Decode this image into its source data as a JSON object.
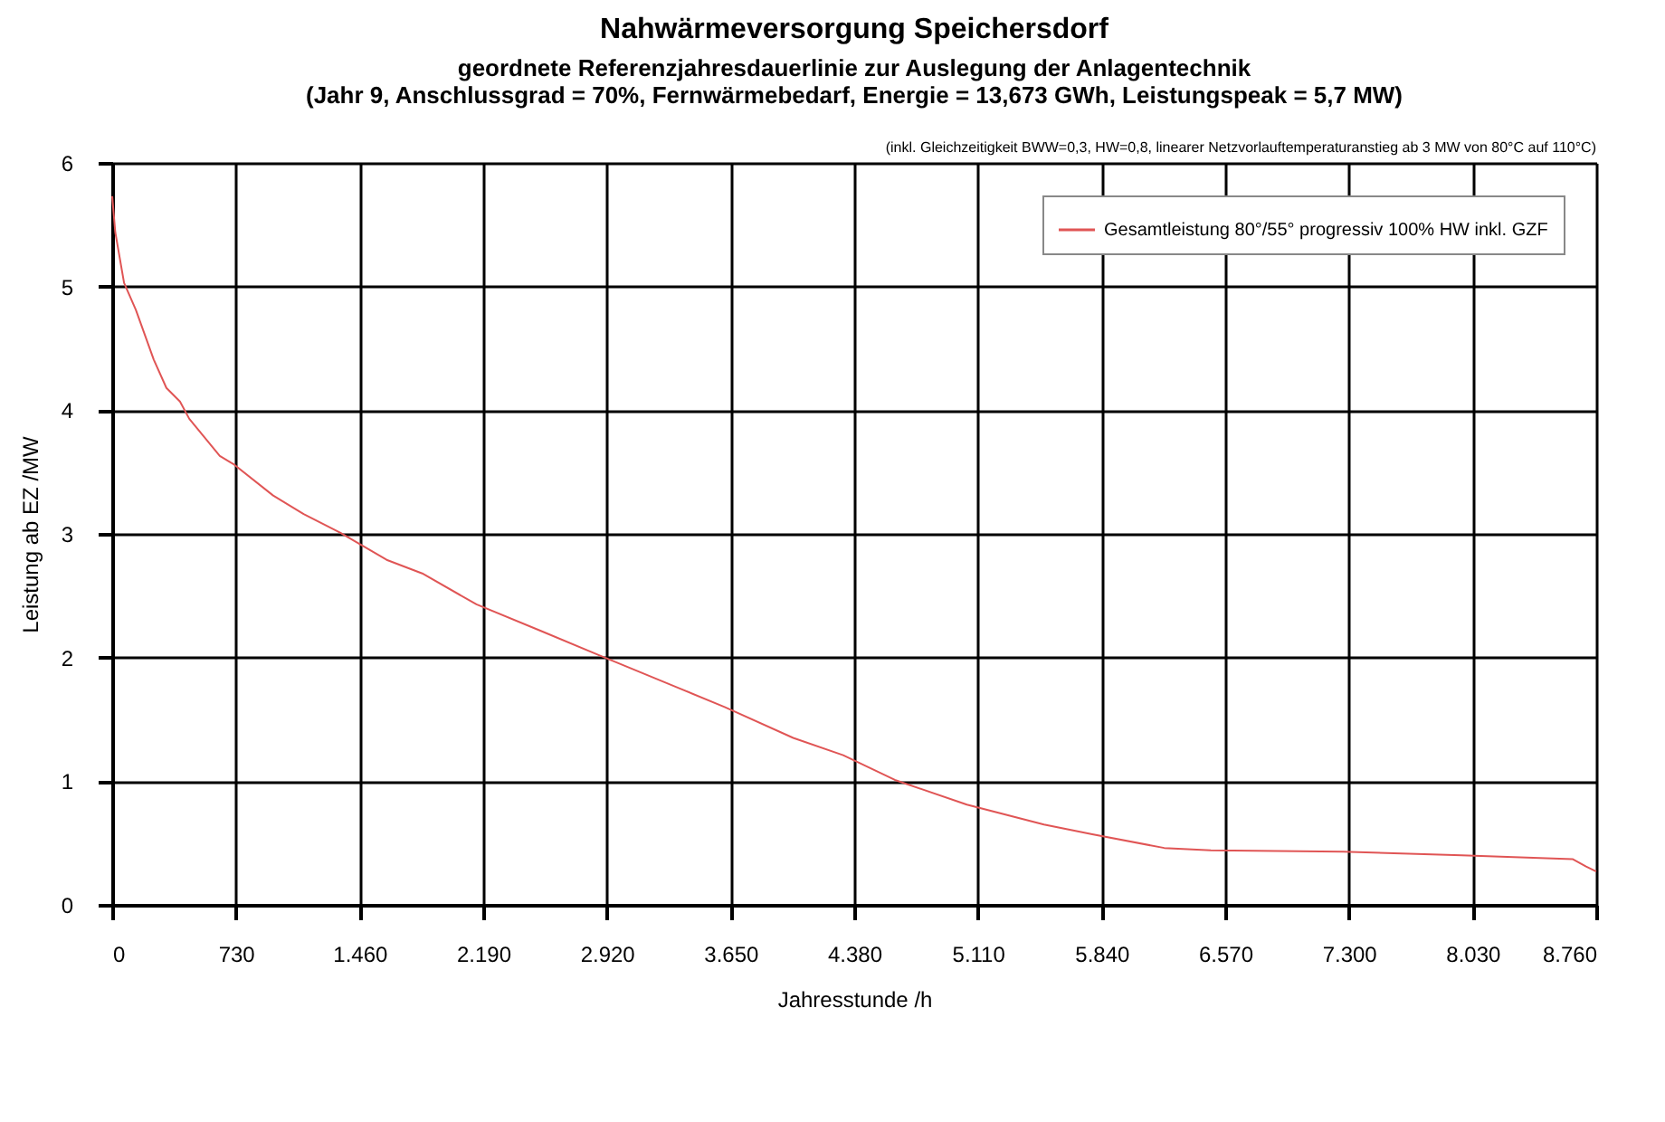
{
  "chart_data": {
    "type": "line",
    "title": "Nahwärmeversorgung Speichersdorf",
    "subtitle": "geordnete Referenzjahresdauerlinie zur Auslegung der Anlagentechnik\n(Jahr 9, Anschlussgrad = 70%, Fernwärmebedarf, Energie = 13,673 GWh, Leistungspeak = 5,7 MW)",
    "annotations": [
      "(inkl. Gleichzeitigkeit BWW=0,3, HW=0,8, linearer Netzvorlauftemperaturanstieg ab 3 MW von 80°C auf 110°C)"
    ],
    "xlabel": "Jahresstunde /h",
    "ylabel": "Leistung ab EZ /MW",
    "x": [
      0,
      18,
      70,
      140,
      245,
      320,
      400,
      455,
      635,
      720,
      950,
      1130,
      1345,
      1620,
      1830,
      2150,
      2540,
      2890,
      3350,
      3615,
      4020,
      4315,
      4620,
      5045,
      5500,
      5785,
      6210,
      6485,
      7265,
      7965,
      8620,
      8700,
      8760
    ],
    "series": [
      {
        "name": "Gesamtleistung 80°/55° progressiv 100% HW inkl. GZF",
        "color": "#e05555",
        "values": [
          5.73,
          5.44,
          5.03,
          4.81,
          4.41,
          4.18,
          4.07,
          3.93,
          3.63,
          3.56,
          3.31,
          3.16,
          3.01,
          2.79,
          2.68,
          2.43,
          2.21,
          2.01,
          1.75,
          1.6,
          1.35,
          1.21,
          1.01,
          0.81,
          0.65,
          0.57,
          0.46,
          0.44,
          0.43,
          0.4,
          0.37,
          0.31,
          0.27
        ]
      }
    ],
    "xlim": [
      0,
      8760
    ],
    "ylim": [
      0,
      6
    ],
    "xticks": [
      0,
      730,
      {
        "value": 1460,
        "label": "1.460"
      },
      {
        "value": 2190,
        "label": "2.190"
      },
      {
        "value": 2920,
        "label": "2.920"
      },
      {
        "value": 3650,
        "label": "3.650"
      },
      {
        "value": 4380,
        "label": "4.380"
      },
      {
        "value": 5110,
        "label": "5.110"
      },
      {
        "value": 5840,
        "label": "5.840"
      },
      {
        "value": 6570,
        "label": "6.570"
      },
      {
        "value": 7300,
        "label": "7.300"
      },
      {
        "value": 8030,
        "label": "8.030"
      },
      {
        "value": 8760,
        "label": "8.760"
      }
    ],
    "yticks": [
      0,
      1,
      2,
      3,
      4,
      5,
      6
    ],
    "grid": true,
    "legend": "top right",
    "marker": "none",
    "line_style": "solid"
  }
}
